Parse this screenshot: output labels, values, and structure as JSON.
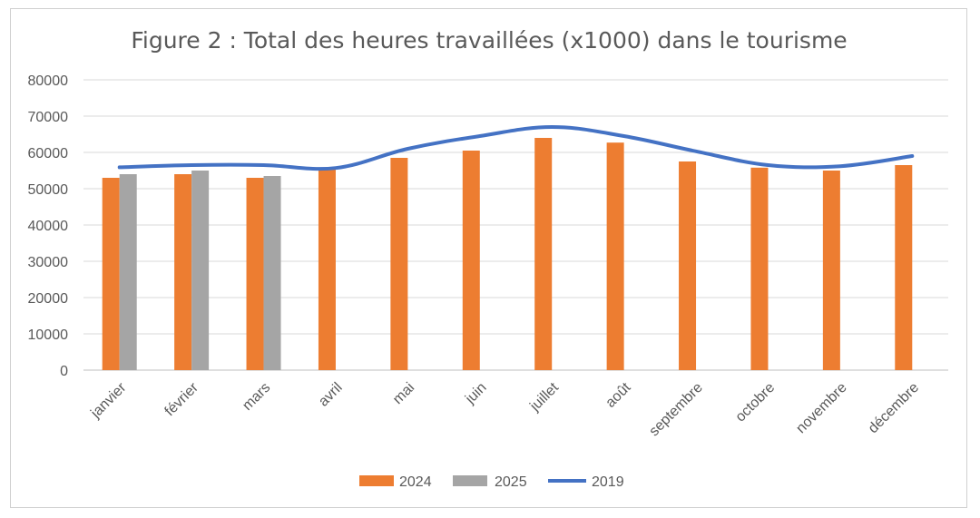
{
  "chart_data": {
    "type": "bar",
    "title": "Figure 2 : Total des heures travaillées (x1000) dans le tourisme",
    "xlabel": "",
    "ylabel": "",
    "categories": [
      "janvier",
      "février",
      "mars",
      "avril",
      "mai",
      "juin",
      "juillet",
      "août",
      "septembre",
      "octobre",
      "novembre",
      "décembre"
    ],
    "ylim": [
      0,
      80000
    ],
    "yticks": [
      "0",
      "10000",
      "20000",
      "30000",
      "40000",
      "50000",
      "60000",
      "70000",
      "80000"
    ],
    "grid": true,
    "legend_position": "bottom",
    "series": [
      {
        "name": "2024",
        "kind": "bar",
        "color": "#ED7D31",
        "values": [
          53000,
          54000,
          53000,
          55500,
          58500,
          60500,
          64000,
          62700,
          57500,
          55800,
          55000,
          56500
        ]
      },
      {
        "name": "2025",
        "kind": "bar",
        "color": "#A5A5A5",
        "values": [
          54000,
          55000,
          53500,
          null,
          null,
          null,
          null,
          null,
          null,
          null,
          null,
          null
        ]
      },
      {
        "name": "2019",
        "kind": "line",
        "color": "#4472C4",
        "values": [
          55900,
          56500,
          56500,
          55700,
          61000,
          64500,
          67000,
          64500,
          60300,
          56500,
          56200,
          59000
        ]
      }
    ]
  }
}
